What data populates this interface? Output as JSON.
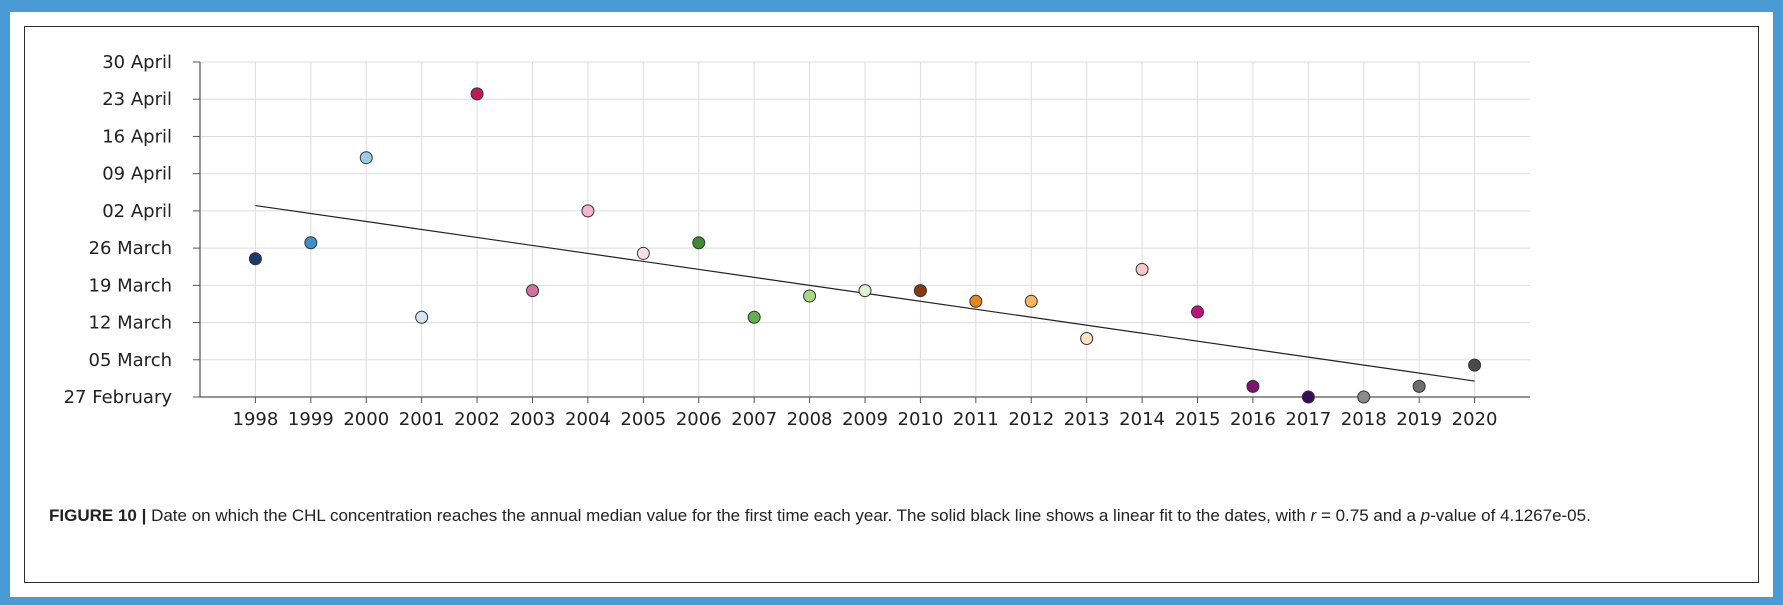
{
  "chart_data": {
    "type": "scatter",
    "xlim": [
      1997,
      2021
    ],
    "ylim": [
      "2000-02-27",
      "2000-04-30"
    ],
    "x_ticks": [
      "1998",
      "1999",
      "2000",
      "2001",
      "2002",
      "2003",
      "2004",
      "2005",
      "2006",
      "2007",
      "2008",
      "2009",
      "2010",
      "2011",
      "2012",
      "2013",
      "2014",
      "2015",
      "2016",
      "2017",
      "2018",
      "2019",
      "2020"
    ],
    "y_ticks": [
      {
        "date": "2000-04-30",
        "label": "30 April"
      },
      {
        "date": "2000-04-23",
        "label": "23 April"
      },
      {
        "date": "2000-04-16",
        "label": "16 April"
      },
      {
        "date": "2000-04-09",
        "label": "09 April"
      },
      {
        "date": "2000-04-02",
        "label": "02 April"
      },
      {
        "date": "2000-03-26",
        "label": "26 March"
      },
      {
        "date": "2000-03-19",
        "label": "19 March"
      },
      {
        "date": "2000-03-12",
        "label": "12 March"
      },
      {
        "date": "2000-03-05",
        "label": "05 March"
      },
      {
        "date": "2000-02-27",
        "label": "27 February"
      }
    ],
    "grid": true,
    "points": [
      {
        "year": 1998,
        "date": "03-24",
        "color": "#1a3a6b"
      },
      {
        "year": 1999,
        "date": "03-27",
        "color": "#3d8ec9"
      },
      {
        "year": 2000,
        "date": "04-12",
        "color": "#9ccbea"
      },
      {
        "year": 2001,
        "date": "03-13",
        "color": "#d3e6f5"
      },
      {
        "year": 2002,
        "date": "04-24",
        "color": "#c2185b"
      },
      {
        "year": 2003,
        "date": "03-18",
        "color": "#d6719f"
      },
      {
        "year": 2004,
        "date": "04-02",
        "color": "#f4b6d2"
      },
      {
        "year": 2005,
        "date": "03-25",
        "color": "#fbdde9"
      },
      {
        "year": 2006,
        "date": "03-27",
        "color": "#3f8a2e"
      },
      {
        "year": 2007,
        "date": "03-13",
        "color": "#5fb14a"
      },
      {
        "year": 2008,
        "date": "03-17",
        "color": "#a8d880"
      },
      {
        "year": 2009,
        "date": "03-18",
        "color": "#e0f2cf"
      },
      {
        "year": 2010,
        "date": "03-18",
        "color": "#8a3a0c"
      },
      {
        "year": 2011,
        "date": "03-16",
        "color": "#e8861c"
      },
      {
        "year": 2012,
        "date": "03-16",
        "color": "#f7b561"
      },
      {
        "year": 2013,
        "date": "03-09",
        "color": "#fde3bf"
      },
      {
        "year": 2014,
        "date": "03-22",
        "color": "#f8c7c7"
      },
      {
        "year": 2015,
        "date": "03-14",
        "color": "#c0127a"
      },
      {
        "year": 2016,
        "date": "02-29",
        "color": "#7a1570"
      },
      {
        "year": 2017,
        "date": "02-27",
        "color": "#3a0a5c"
      },
      {
        "year": 2018,
        "date": "02-27",
        "color": "#8c8c8c"
      },
      {
        "year": 2019,
        "date": "02-29",
        "color": "#6e6e6e"
      },
      {
        "year": 2020,
        "date": "03-04",
        "color": "#4a4a4a"
      }
    ],
    "fit_line": {
      "start": {
        "year": 1998,
        "date": "04-03"
      },
      "end": {
        "year": 2020,
        "date": "03-01"
      }
    }
  },
  "caption": {
    "label": "FIGURE 10 |",
    "text1": " Date on which the CHL concentration reaches the annual median value for the first time each year. The solid black line shows a linear fit to the dates, with ",
    "r_symbol": "r",
    "text2": " = 0.75 and a ",
    "p_symbol": "p",
    "text3": "-value of 4.1267e-05."
  }
}
